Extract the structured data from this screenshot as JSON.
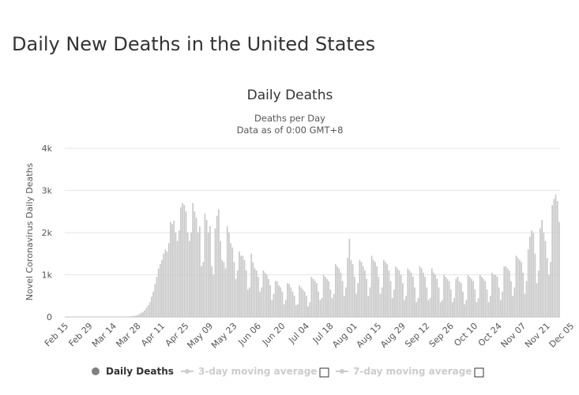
{
  "page": {
    "title": "Daily New Deaths in the United States"
  },
  "chart_data": {
    "type": "bar",
    "title": "Daily Deaths",
    "subtitle_lines": [
      "Deaths per Day",
      "Data as of 0:00 GMT+8"
    ],
    "ylabel": "Novel Coronavirus Daily Deaths",
    "xlabel": "",
    "ylim": [
      0,
      4000
    ],
    "yticks": [
      0,
      1000,
      2000,
      3000,
      4000
    ],
    "ytick_labels": [
      "0",
      "1k",
      "2k",
      "3k",
      "4k"
    ],
    "grid": true,
    "xtick_labels": [
      "Feb 15",
      "Feb 29",
      "Mar 14",
      "Mar 28",
      "Apr 11",
      "Apr 25",
      "May 09",
      "May 23",
      "Jun 06",
      "Jun 20",
      "Jul 04",
      "Jul 18",
      "Aug 01",
      "Aug 15",
      "Aug 29",
      "Sep 12",
      "Sep 26",
      "Oct 10",
      "Oct 24",
      "Nov 07",
      "Nov 21",
      "Dec 05"
    ],
    "bar_color": "#c8c8c8",
    "start_date": "Feb 15",
    "values": [
      0,
      0,
      0,
      0,
      0,
      0,
      0,
      0,
      0,
      0,
      0,
      0,
      0,
      0,
      0,
      0,
      0,
      0,
      0,
      0,
      0,
      0,
      0,
      0,
      0,
      0,
      0,
      0,
      0,
      0,
      0,
      0,
      1,
      2,
      3,
      5,
      8,
      10,
      15,
      20,
      25,
      35,
      50,
      70,
      100,
      120,
      160,
      220,
      280,
      350,
      480,
      600,
      780,
      950,
      1150,
      1250,
      1350,
      1500,
      1600,
      1550,
      1750,
      2250,
      2200,
      2280,
      2000,
      1800,
      2050,
      2600,
      2700,
      2650,
      2500,
      2000,
      1800,
      2000,
      2700,
      2500,
      2350,
      2000,
      2150,
      1200,
      1300,
      2450,
      2300,
      2000,
      2150,
      1200,
      1000,
      2100,
      2400,
      2550,
      1800,
      1350,
      1300,
      1150,
      2150,
      2000,
      1750,
      1650,
      1300,
      900,
      1100,
      1550,
      1450,
      1450,
      1350,
      1100,
      650,
      700,
      1500,
      1300,
      1150,
      1100,
      950,
      600,
      700,
      1100,
      1050,
      1000,
      900,
      750,
      400,
      550,
      850,
      850,
      750,
      700,
      600,
      300,
      400,
      800,
      780,
      700,
      600,
      500,
      280,
      300,
      750,
      700,
      650,
      600,
      500,
      250,
      350,
      950,
      900,
      850,
      800,
      600,
      400,
      450,
      1000,
      950,
      900,
      850,
      650,
      450,
      550,
      1250,
      1200,
      1150,
      1050,
      850,
      500,
      700,
      1400,
      1850,
      1350,
      1250,
      950,
      550,
      800,
      1350,
      1300,
      1200,
      1100,
      900,
      500,
      700,
      1450,
      1350,
      1300,
      1200,
      950,
      550,
      700,
      1350,
      1300,
      1250,
      1100,
      850,
      450,
      650,
      1200,
      1150,
      1100,
      1000,
      800,
      400,
      500,
      1150,
      1100,
      1050,
      950,
      700,
      350,
      450,
      1200,
      1150,
      1050,
      950,
      700,
      400,
      450,
      1150,
      1050,
      1000,
      900,
      700,
      350,
      400,
      1000,
      950,
      900,
      850,
      650,
      350,
      450,
      900,
      950,
      850,
      800,
      600,
      300,
      400,
      1000,
      950,
      900,
      850,
      650,
      350,
      450,
      1000,
      950,
      900,
      850,
      650,
      350,
      500,
      1050,
      1000,
      1000,
      950,
      700,
      400,
      600,
      1200,
      1200,
      1150,
      1100,
      850,
      500,
      700,
      1450,
      1400,
      1350,
      1300,
      1050,
      550,
      850,
      1600,
      1900,
      2050,
      2000,
      1500,
      800,
      1100,
      2100,
      2300,
      2000,
      1800,
      1400,
      1000,
      1300,
      2650,
      2800,
      2900,
      2750,
      2250
    ]
  },
  "legend": {
    "items": [
      {
        "label": "Daily Deaths",
        "color": "#808080",
        "active": true
      },
      {
        "label": "3-day moving average",
        "color": "#cccccc",
        "active": false
      },
      {
        "label": "7-day moving average",
        "color": "#cccccc",
        "active": false
      }
    ]
  }
}
